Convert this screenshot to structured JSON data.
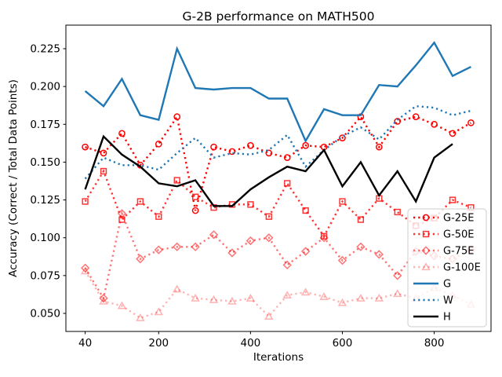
{
  "title": "G-2B performance on MATH500",
  "xlabel": "Iterations",
  "ylabel": "Accuracy (Correct / Total Data Points)",
  "colors": {
    "red": "#ff0000",
    "blue": "#1f77b4",
    "black": "#000000",
    "legend_border": "#cccccc",
    "background": "#ffffff"
  },
  "chart_data": {
    "type": "line",
    "title": "G-2B performance on MATH500",
    "xlabel": "Iterations",
    "ylabel": "Accuracy (Correct / Total Data Points)",
    "grid": false,
    "legend_position": "lower right",
    "xlim": [
      -2,
      922
    ],
    "ylim": [
      0.0363,
      0.2406
    ],
    "xticks": [
      40,
      200,
      400,
      600,
      800
    ],
    "yticks": [
      0.05,
      0.075,
      0.1,
      0.125,
      0.15,
      0.175,
      0.2,
      0.225
    ],
    "x": [
      40,
      80,
      120,
      160,
      200,
      240,
      280,
      320,
      360,
      400,
      440,
      480,
      520,
      560,
      600,
      640,
      680,
      720,
      760,
      800,
      840,
      880
    ],
    "series": [
      {
        "name": "G-25E",
        "color": "#ff0000",
        "opacity": 1.0,
        "style": "dotted",
        "marker": "circle",
        "values": [
          0.16,
          0.156,
          0.169,
          0.148,
          0.162,
          0.18,
          0.118,
          0.16,
          0.157,
          0.161,
          0.156,
          0.153,
          0.161,
          0.16,
          0.166,
          0.18,
          0.16,
          0.177,
          0.18,
          0.175,
          0.169,
          0.176
        ]
      },
      {
        "name": "G-50E",
        "color": "#ff0000",
        "opacity": 0.8,
        "style": "dotted",
        "marker": "square",
        "values": [
          0.124,
          0.144,
          0.112,
          0.124,
          0.114,
          0.138,
          0.127,
          0.12,
          0.122,
          0.122,
          0.114,
          0.136,
          0.118,
          0.101,
          0.124,
          0.112,
          0.126,
          0.117,
          0.108,
          0.113,
          0.125,
          0.12
        ]
      },
      {
        "name": "G-75E",
        "color": "#ff0000",
        "opacity": 0.55,
        "style": "dotted",
        "marker": "diamond",
        "values": [
          0.08,
          0.06,
          0.116,
          0.086,
          0.092,
          0.094,
          0.094,
          0.102,
          0.09,
          0.098,
          0.1,
          0.082,
          0.091,
          0.1,
          0.085,
          0.094,
          0.089,
          0.075,
          0.091,
          0.088,
          0.086,
          0.092
        ]
      },
      {
        "name": "G-100E",
        "color": "#ff0000",
        "opacity": 0.3,
        "style": "dotted",
        "marker": "triangle",
        "values": [
          0.078,
          0.058,
          0.055,
          0.047,
          0.051,
          0.066,
          0.06,
          0.059,
          0.058,
          0.06,
          0.048,
          0.062,
          0.064,
          0.061,
          0.057,
          0.06,
          0.06,
          0.063,
          0.06,
          0.067,
          0.062,
          0.056
        ]
      },
      {
        "name": "G",
        "color": "#1f77b4",
        "opacity": 1.0,
        "style": "solid",
        "marker": "none",
        "values": [
          0.197,
          0.187,
          0.205,
          0.181,
          0.178,
          0.225,
          0.199,
          0.198,
          0.199,
          0.199,
          0.192,
          0.192,
          0.164,
          0.185,
          0.181,
          0.181,
          0.201,
          0.2,
          0.214,
          0.229,
          0.207,
          0.213
        ]
      },
      {
        "name": "W",
        "color": "#1f77b4",
        "opacity": 1.0,
        "style": "dotted",
        "marker": "none",
        "values": [
          0.139,
          0.153,
          0.148,
          0.148,
          0.145,
          0.156,
          0.166,
          0.153,
          0.156,
          0.155,
          0.158,
          0.168,
          0.147,
          0.158,
          0.167,
          0.173,
          0.165,
          0.178,
          0.187,
          0.186,
          0.181,
          0.184
        ]
      },
      {
        "name": "H",
        "color": "#000000",
        "opacity": 1.0,
        "style": "solid",
        "marker": "none",
        "values": [
          0.132,
          0.167,
          0.155,
          0.147,
          0.136,
          0.134,
          0.138,
          0.121,
          0.121,
          0.132,
          0.14,
          0.147,
          0.144,
          0.158,
          0.134,
          0.15,
          0.128,
          0.144,
          0.124,
          0.153,
          0.162,
          null
        ]
      }
    ]
  }
}
